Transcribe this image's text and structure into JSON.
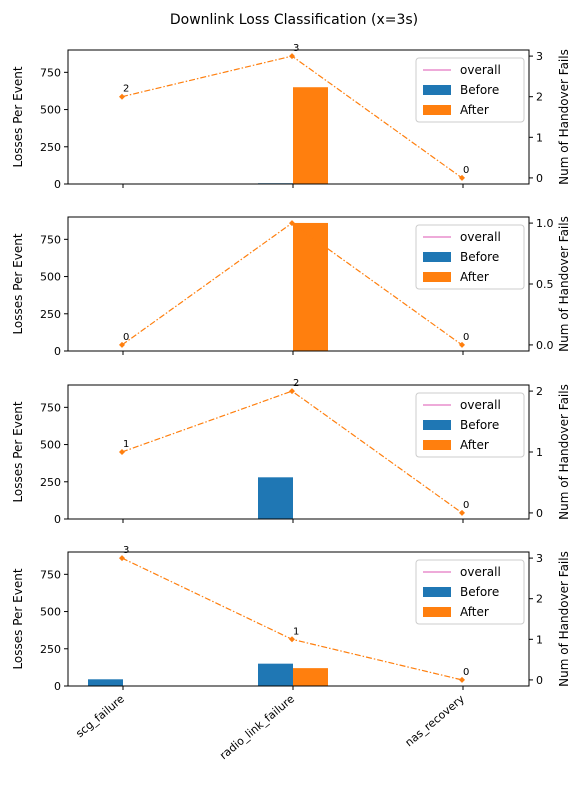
{
  "figure": {
    "title": "Downlink Loss Classification (x=3s)"
  },
  "chart_data": {
    "type": "bar",
    "categories": [
      "scg_failure",
      "radio_link_failure",
      "nas_recovery"
    ],
    "legend": {
      "placement": "upper right",
      "entries": [
        "overall",
        "Before",
        "After"
      ]
    },
    "colors": {
      "before": "#1f77b4",
      "after": "#ff7f0e",
      "overall": "#e377c2",
      "fails_line": "#ff7f0e"
    },
    "grid": false,
    "subplots": [
      {
        "ylabel_left": "Losses Per Event",
        "ylabel_right": "Num of Handover Fails",
        "ylim_left": [
          0,
          900
        ],
        "yticks_left": [
          0,
          250,
          500,
          750
        ],
        "ylim_right": [
          -0.15,
          3.15
        ],
        "yticks_right": [
          0,
          1,
          2,
          3
        ],
        "yticklabels_right": [
          "0",
          "1",
          "2",
          "3"
        ],
        "series": [
          {
            "name": "Before",
            "values": [
              0,
              5,
              0
            ]
          },
          {
            "name": "After",
            "values": [
              0,
              650,
              0
            ]
          }
        ],
        "handover_fails": [
          2,
          3,
          0
        ],
        "handover_fail_labels": [
          "2",
          "3",
          "0"
        ]
      },
      {
        "ylabel_left": "Losses Per Event",
        "ylabel_right": "Num of Handover Fails",
        "ylim_left": [
          0,
          900
        ],
        "yticks_left": [
          0,
          250,
          500,
          750
        ],
        "ylim_right": [
          -0.05,
          1.05
        ],
        "yticks_right": [
          0,
          0.5,
          1
        ],
        "yticklabels_right": [
          "0.0",
          "0.5",
          "1.0"
        ],
        "series": [
          {
            "name": "Before",
            "values": [
              0,
              0,
              0
            ]
          },
          {
            "name": "After",
            "values": [
              0,
              860,
              0
            ]
          }
        ],
        "handover_fails": [
          0,
          1,
          0
        ],
        "handover_fail_labels": [
          "0",
          "",
          "0"
        ]
      },
      {
        "ylabel_left": "Losses Per Event",
        "ylabel_right": "Num of Handover Fails",
        "ylim_left": [
          0,
          900
        ],
        "yticks_left": [
          0,
          250,
          500,
          750
        ],
        "ylim_right": [
          -0.1,
          2.1
        ],
        "yticks_right": [
          0,
          1,
          2
        ],
        "yticklabels_right": [
          "0",
          "1",
          "2"
        ],
        "series": [
          {
            "name": "Before",
            "values": [
              0,
              280,
              0
            ]
          },
          {
            "name": "After",
            "values": [
              0,
              0,
              0
            ]
          }
        ],
        "handover_fails": [
          1,
          2,
          0
        ],
        "handover_fail_labels": [
          "1",
          "2",
          "0"
        ]
      },
      {
        "ylabel_left": "Losses Per Event",
        "ylabel_right": "Num of Handover Fails",
        "ylim_left": [
          0,
          900
        ],
        "yticks_left": [
          0,
          250,
          500,
          750
        ],
        "ylim_right": [
          -0.15,
          3.15
        ],
        "yticks_right": [
          0,
          1,
          2,
          3
        ],
        "yticklabels_right": [
          "0",
          "1",
          "2",
          "3"
        ],
        "series": [
          {
            "name": "Before",
            "values": [
              45,
              150,
              0
            ]
          },
          {
            "name": "After",
            "values": [
              0,
              120,
              0
            ]
          }
        ],
        "handover_fails": [
          3,
          1,
          0
        ],
        "handover_fail_labels": [
          "3",
          "1",
          "0"
        ]
      }
    ]
  }
}
